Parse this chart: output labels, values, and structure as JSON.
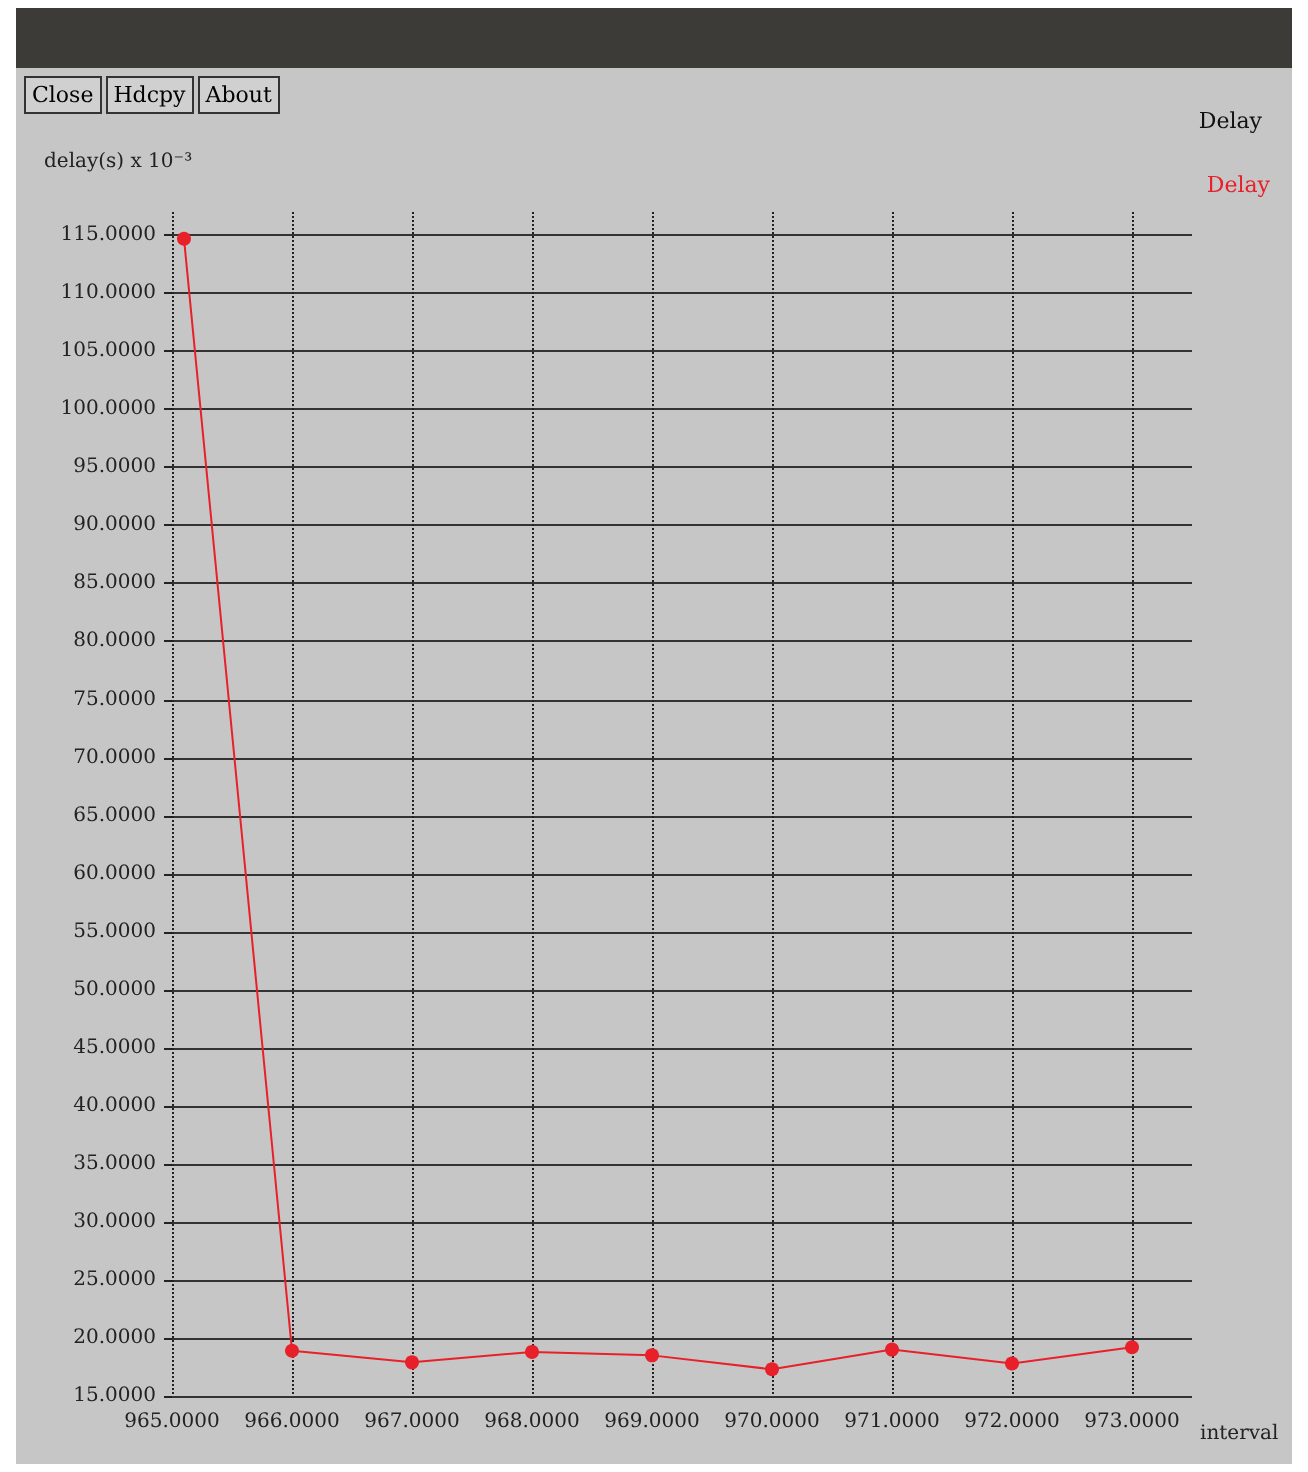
{
  "chart_data": {
    "type": "line",
    "title": "Delay",
    "xlabel": "interval",
    "ylabel": "delay(s) x 10⁻³",
    "annotations": [
      "Close",
      "Hdcpy",
      "About"
    ],
    "x": [
      965.1,
      966,
      967,
      968,
      969,
      970,
      971,
      972,
      973
    ],
    "series": [
      {
        "name": "Delay",
        "color": "#e8202a",
        "values": [
          114.7,
          18.9,
          17.9,
          18.8,
          18.5,
          17.3,
          19.0,
          17.8,
          19.2
        ]
      }
    ],
    "xlim": [
      965,
      973.5
    ],
    "xticks": [
      {
        "value": 965,
        "label": "965.0000"
      },
      {
        "value": 966,
        "label": "966.0000"
      },
      {
        "value": 967,
        "label": "967.0000"
      },
      {
        "value": 968,
        "label": "968.0000"
      },
      {
        "value": 969,
        "label": "969.0000"
      },
      {
        "value": 970,
        "label": "970.0000"
      },
      {
        "value": 971,
        "label": "971.0000"
      },
      {
        "value": 972,
        "label": "972.0000"
      },
      {
        "value": 973,
        "label": "973.0000"
      }
    ],
    "ylim": [
      15,
      117
    ],
    "yticks": [
      {
        "value": 15,
        "label": "15.0000"
      },
      {
        "value": 20,
        "label": "20.0000"
      },
      {
        "value": 25,
        "label": "25.0000"
      },
      {
        "value": 30,
        "label": "30.0000"
      },
      {
        "value": 35,
        "label": "35.0000"
      },
      {
        "value": 40,
        "label": "40.0000"
      },
      {
        "value": 45,
        "label": "45.0000"
      },
      {
        "value": 50,
        "label": "50.0000"
      },
      {
        "value": 55,
        "label": "55.0000"
      },
      {
        "value": 60,
        "label": "60.0000"
      },
      {
        "value": 65,
        "label": "65.0000"
      },
      {
        "value": 70,
        "label": "70.0000"
      },
      {
        "value": 75,
        "label": "75.0000"
      },
      {
        "value": 80,
        "label": "80.0000"
      },
      {
        "value": 85,
        "label": "85.0000"
      },
      {
        "value": 90,
        "label": "90.0000"
      },
      {
        "value": 95,
        "label": "95.0000"
      },
      {
        "value": 100,
        "label": "100.0000"
      },
      {
        "value": 105,
        "label": "105.0000"
      },
      {
        "value": 110,
        "label": "110.0000"
      },
      {
        "value": 115,
        "label": "115.0000"
      }
    ],
    "grid": true,
    "legend": "top right",
    "marker": "circle",
    "line_style": "solid"
  }
}
